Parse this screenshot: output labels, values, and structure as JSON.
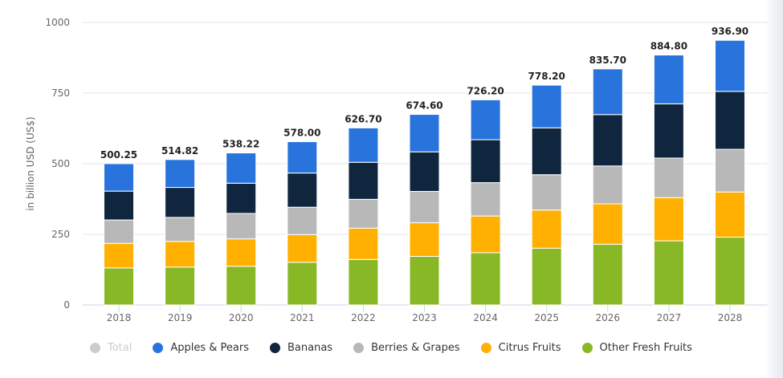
{
  "chart_data": {
    "type": "bar",
    "stacked": true,
    "title": "",
    "xlabel": "",
    "ylabel": "in billion USD (US$)",
    "ylim": [
      0,
      1000
    ],
    "yticks": [
      0,
      250,
      500,
      750,
      1000
    ],
    "grid": true,
    "legend_position": "bottom-left",
    "categories": [
      "2018",
      "2019",
      "2020",
      "2021",
      "2022",
      "2023",
      "2024",
      "2025",
      "2026",
      "2027",
      "2028"
    ],
    "totals": [
      500.25,
      514.82,
      538.22,
      578.0,
      626.7,
      674.6,
      726.2,
      778.2,
      835.7,
      884.8,
      936.9
    ],
    "total_labels": [
      "500.25",
      "514.82",
      "538.22",
      "578.00",
      "626.70",
      "674.60",
      "726.20",
      "778.20",
      "835.70",
      "884.80",
      "936.90"
    ],
    "series": [
      {
        "name": "Other Fresh Fruits",
        "color": "#88b826",
        "values": [
          131,
          134,
          137,
          151,
          161,
          172,
          185,
          201,
          215,
          227,
          240
        ]
      },
      {
        "name": "Citrus Fruits",
        "color": "#ffb000",
        "values": [
          87,
          91,
          97,
          98,
          111,
          119,
          130,
          135,
          143,
          153,
          160
        ]
      },
      {
        "name": "Berries & Grapes",
        "color": "#b8b8b8",
        "values": [
          83,
          85,
          90,
          97,
          102,
          111,
          118,
          125,
          134,
          140,
          151
        ]
      },
      {
        "name": "Bananas",
        "color": "#10263e",
        "values": [
          102,
          106,
          107,
          121,
          131,
          140,
          152,
          166,
          182,
          192,
          205
        ]
      },
      {
        "name": "Apples & Pears",
        "color": "#2874dc",
        "values": [
          97.25,
          98.82,
          107.22,
          111.0,
          121.7,
          132.6,
          141.2,
          151.2,
          161.7,
          172.8,
          180.9
        ]
      }
    ]
  },
  "legend": [
    {
      "label": "Total",
      "color": "#cccccc",
      "active": false
    },
    {
      "label": "Apples & Pears",
      "color": "#2874dc",
      "active": true
    },
    {
      "label": "Bananas",
      "color": "#10263e",
      "active": true
    },
    {
      "label": "Berries & Grapes",
      "color": "#b8b8b8",
      "active": true
    },
    {
      "label": "Citrus Fruits",
      "color": "#ffb000",
      "active": true
    },
    {
      "label": "Other Fresh Fruits",
      "color": "#88b826",
      "active": true
    }
  ]
}
